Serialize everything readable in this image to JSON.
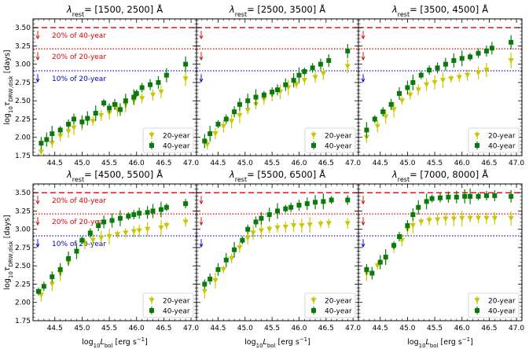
{
  "chart_data": {
    "type": "scatter",
    "xlim": [
      44.1,
      47.1
    ],
    "ylim": [
      1.75,
      3.62
    ],
    "xticks": [
      "44.5",
      "45.0",
      "45.5",
      "46.0",
      "46.5",
      "47.0"
    ],
    "yticks": [
      "1.75",
      "2.00",
      "2.25",
      "2.50",
      "2.75",
      "3.00",
      "3.25",
      "3.50"
    ],
    "xlabel_prefix": "log",
    "xlabel_sub": "10",
    "xlabel_L": "L",
    "xlabel_Lsub": "bol",
    "xlabel_unit": " [erg s",
    "xlabel_exp": "−1",
    "xlabel_close": "]",
    "ylabel_prefix": "log",
    "ylabel_sub10": "10",
    "ylabel_tau": "τ",
    "ylabel_sub": "DRW,disk",
    "ylabel_unit": " [days]",
    "title_lambda": "λ",
    "title_sub": "rest",
    "title_unit": "Å",
    "reference_lines": [
      {
        "name": "20% of 40-year",
        "y": 3.5,
        "color": "#dd0000",
        "style": "dashed"
      },
      {
        "name": "20% of 20-year",
        "y": 3.21,
        "color": "#dd0000",
        "style": "dotted"
      },
      {
        "name": "10% of 20-year",
        "y": 2.91,
        "color": "#0000cc",
        "style": "dotted"
      }
    ],
    "legend": [
      {
        "name": "20-year",
        "color": "#c8c800",
        "marker": "triangle"
      },
      {
        "name": "40-year",
        "color": "#0a7a0a",
        "marker": "square"
      }
    ],
    "panels": [
      {
        "title": "= [1500,  2500]",
        "show_annotations": true,
        "series": [
          {
            "name": "20-year",
            "x": [
              44.25,
              44.45,
              44.6,
              44.75,
              44.85,
              45.0,
              45.1,
              45.2,
              45.35,
              45.5,
              45.65,
              45.8,
              45.95,
              46.1,
              46.3,
              46.45,
              46.9
            ],
            "y": [
              1.8,
              1.92,
              2.02,
              2.08,
              2.13,
              2.2,
              2.24,
              2.22,
              2.3,
              2.33,
              2.38,
              2.45,
              2.5,
              2.53,
              2.58,
              2.62,
              2.8
            ]
          },
          {
            "name": "40-year",
            "x": [
              44.25,
              44.35,
              44.45,
              44.6,
              44.75,
              44.85,
              45.0,
              45.1,
              45.25,
              45.4,
              45.5,
              45.6,
              45.7,
              45.8,
              45.95,
              46.0,
              46.1,
              46.25,
              46.4,
              46.55,
              46.9
            ],
            "y": [
              1.92,
              1.97,
              2.05,
              2.1,
              2.18,
              2.25,
              2.21,
              2.26,
              2.33,
              2.47,
              2.4,
              2.45,
              2.38,
              2.5,
              2.55,
              2.6,
              2.68,
              2.72,
              2.75,
              2.85,
              3.0
            ]
          }
        ]
      },
      {
        "title": "= [2500,  3500]",
        "show_annotations": false,
        "series": [
          {
            "name": "20-year",
            "x": [
              44.3,
              44.45,
              44.6,
              44.75,
              44.9,
              45.05,
              45.2,
              45.35,
              45.5,
              45.65,
              45.8,
              45.95,
              46.1,
              46.3,
              46.45,
              46.9
            ],
            "y": [
              1.9,
              2.05,
              2.15,
              2.22,
              2.3,
              2.37,
              2.45,
              2.52,
              2.58,
              2.62,
              2.68,
              2.72,
              2.78,
              2.82,
              2.87,
              2.97
            ]
          },
          {
            "name": "40-year",
            "x": [
              44.25,
              44.35,
              44.5,
              44.65,
              44.8,
              44.9,
              45.05,
              45.2,
              45.35,
              45.5,
              45.6,
              45.75,
              45.9,
              46.0,
              46.1,
              46.25,
              46.4,
              46.55,
              46.9
            ],
            "y": [
              1.95,
              2.05,
              2.18,
              2.25,
              2.35,
              2.45,
              2.5,
              2.55,
              2.58,
              2.62,
              2.65,
              2.72,
              2.78,
              2.85,
              2.9,
              2.95,
              3.0,
              3.05,
              3.18
            ]
          }
        ]
      },
      {
        "title": "= [3500,  4500]",
        "show_annotations": false,
        "series": [
          {
            "name": "20-year",
            "x": [
              44.25,
              44.45,
              44.6,
              44.75,
              44.9,
              45.05,
              45.2,
              45.35,
              45.5,
              45.65,
              45.8,
              45.95,
              46.1,
              46.3,
              46.45,
              46.9
            ],
            "y": [
              2.0,
              2.15,
              2.28,
              2.38,
              2.5,
              2.58,
              2.65,
              2.72,
              2.75,
              2.78,
              2.8,
              2.82,
              2.85,
              2.88,
              2.92,
              3.05
            ]
          },
          {
            "name": "40-year",
            "x": [
              44.25,
              44.4,
              44.55,
              44.7,
              44.85,
              45.0,
              45.1,
              45.25,
              45.4,
              45.55,
              45.7,
              45.85,
              46.0,
              46.15,
              46.3,
              46.45,
              46.55,
              46.9
            ],
            "y": [
              2.1,
              2.25,
              2.35,
              2.45,
              2.6,
              2.68,
              2.75,
              2.85,
              2.92,
              2.95,
              3.0,
              3.05,
              3.08,
              3.1,
              3.15,
              3.18,
              3.22,
              3.3
            ]
          }
        ]
      },
      {
        "title": "= [4500,  5500]",
        "show_annotations": true,
        "series": [
          {
            "name": "20-year",
            "x": [
              44.25,
              44.45,
              44.6,
              44.75,
              44.9,
              45.05,
              45.2,
              45.35,
              45.5,
              45.65,
              45.8,
              45.95,
              46.05,
              46.2,
              46.45,
              46.55,
              46.9
            ],
            "y": [
              2.1,
              2.25,
              2.4,
              2.55,
              2.7,
              2.8,
              2.85,
              2.88,
              2.9,
              2.93,
              2.95,
              2.97,
              2.98,
              3.0,
              3.02,
              3.05,
              3.1
            ]
          },
          {
            "name": "40-year",
            "x": [
              44.2,
              44.3,
              44.45,
              44.6,
              44.75,
              44.9,
              45.0,
              45.15,
              45.3,
              45.4,
              45.55,
              45.7,
              45.85,
              45.95,
              46.05,
              46.2,
              46.3,
              46.45,
              46.55,
              46.9
            ],
            "y": [
              2.15,
              2.22,
              2.35,
              2.45,
              2.6,
              2.7,
              2.85,
              2.95,
              3.05,
              3.1,
              3.12,
              3.15,
              3.18,
              3.2,
              3.22,
              3.23,
              3.25,
              3.27,
              3.3,
              3.35
            ]
          }
        ]
      },
      {
        "title": "= [5500,  6500]",
        "show_annotations": false,
        "series": [
          {
            "name": "20-year",
            "x": [
              44.25,
              44.45,
              44.6,
              44.75,
              44.9,
              45.05,
              45.15,
              45.3,
              45.45,
              45.6,
              45.75,
              45.9,
              46.05,
              46.2,
              46.4,
              46.55,
              46.9
            ],
            "y": [
              2.15,
              2.3,
              2.45,
              2.6,
              2.75,
              2.88,
              2.95,
              2.98,
              3.0,
              3.02,
              3.03,
              3.05,
              3.05,
              3.06,
              3.07,
              3.08,
              3.08
            ]
          },
          {
            "name": "40-year",
            "x": [
              44.25,
              44.35,
              44.5,
              44.65,
              44.8,
              44.95,
              45.05,
              45.2,
              45.3,
              45.45,
              45.6,
              45.75,
              45.85,
              46.0,
              46.15,
              46.3,
              46.45,
              46.6,
              46.9
            ],
            "y": [
              2.25,
              2.32,
              2.45,
              2.58,
              2.72,
              2.85,
              3.0,
              3.1,
              3.15,
              3.2,
              3.25,
              3.28,
              3.3,
              3.33,
              3.35,
              3.37,
              3.38,
              3.4,
              3.4
            ]
          }
        ]
      },
      {
        "title": "= [7000,  8000]",
        "show_annotations": false,
        "series": [
          {
            "name": "20-year",
            "x": [
              44.25,
              44.45,
              44.6,
              44.75,
              44.9,
              45.0,
              45.1,
              45.25,
              45.4,
              45.55,
              45.7,
              45.85,
              46.0,
              46.15,
              46.3,
              46.45,
              46.6,
              46.9
            ],
            "y": [
              2.4,
              2.5,
              2.6,
              2.75,
              2.85,
              3.0,
              3.05,
              3.1,
              3.12,
              3.13,
              3.14,
              3.14,
              3.15,
              3.15,
              3.15,
              3.15,
              3.15,
              3.15
            ]
          },
          {
            "name": "40-year",
            "x": [
              44.25,
              44.35,
              44.5,
              44.6,
              44.75,
              44.85,
              45.0,
              45.1,
              45.2,
              45.35,
              45.45,
              45.6,
              45.75,
              45.9,
              46.05,
              46.15,
              46.3,
              46.45,
              46.6,
              46.9
            ],
            "y": [
              2.45,
              2.4,
              2.55,
              2.62,
              2.78,
              2.9,
              3.05,
              3.2,
              3.3,
              3.38,
              3.42,
              3.43,
              3.44,
              3.44,
              3.45,
              3.45,
              3.45,
              3.46,
              3.46,
              3.45
            ]
          }
        ]
      }
    ]
  }
}
